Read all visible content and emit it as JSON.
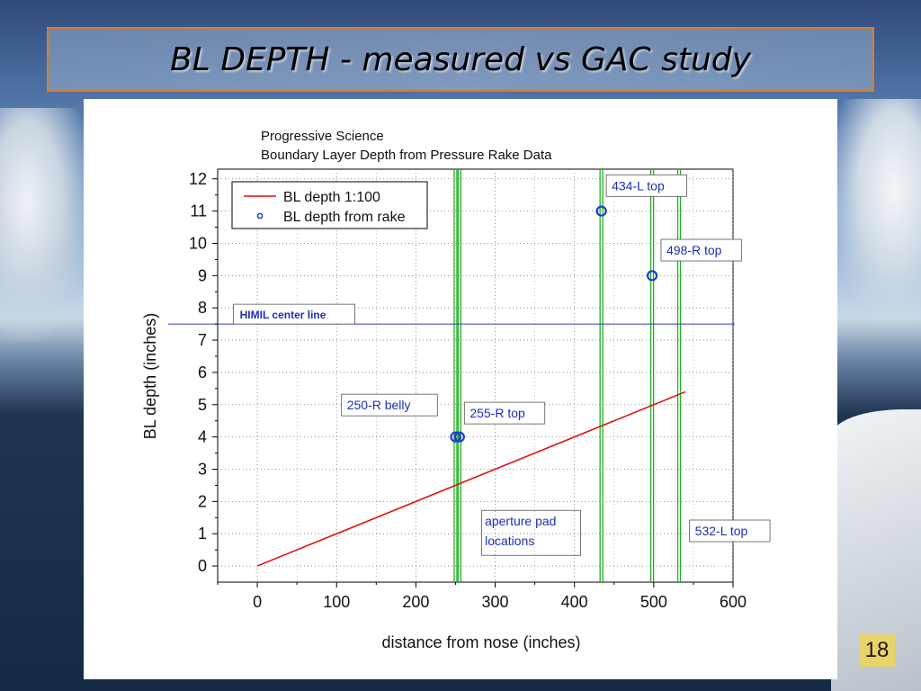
{
  "slide": {
    "title": "BL DEPTH - measured vs GAC study",
    "page_number": "18"
  },
  "chart_data": {
    "type": "line",
    "title": "Progressive Science",
    "subtitle": "Boundary Layer Depth from Pressure Rake Data",
    "xlabel": "distance from nose (inches)",
    "ylabel": "BL depth (inches)",
    "xlim": [
      -50,
      600
    ],
    "ylim": [
      -0.5,
      12.3
    ],
    "xticks": [
      0,
      100,
      200,
      300,
      400,
      500,
      600
    ],
    "yticks": [
      0,
      1,
      2,
      3,
      4,
      5,
      6,
      7,
      8,
      9,
      10,
      11,
      12
    ],
    "grid": true,
    "legend_position": "top-left",
    "series": [
      {
        "name": "BL depth 1:100",
        "kind": "line",
        "color": "#e01010",
        "points": [
          [
            0,
            0
          ],
          [
            540,
            5.4
          ]
        ]
      },
      {
        "name": "BL depth from rake",
        "kind": "scatter",
        "color": "#1a3fd0",
        "points": [
          [
            250,
            4
          ],
          [
            255,
            4
          ],
          [
            434,
            11
          ],
          [
            498,
            9
          ]
        ]
      }
    ],
    "hlines": [
      {
        "y": 7.5,
        "color": "#2a3dbb",
        "label": "HIMIL center line"
      }
    ],
    "vlines": [
      {
        "x": 250,
        "color": "#22b022"
      },
      {
        "x": 255,
        "color": "#22b022"
      },
      {
        "x": 434,
        "color": "#22b022"
      },
      {
        "x": 498,
        "color": "#22b022"
      },
      {
        "x": 532,
        "color": "#22b022"
      }
    ],
    "annotations": [
      {
        "text": "434-L top",
        "x": 447,
        "y": 11.65
      },
      {
        "text": "498-R top",
        "x": 516,
        "y": 9.65
      },
      {
        "text": "250-R belly",
        "x": 113,
        "y": 4.85
      },
      {
        "text": "255-R top",
        "x": 268,
        "y": 4.6
      },
      {
        "text": "aperture pad",
        "x": 287,
        "y": 1.25
      },
      {
        "text": "locations",
        "x": 287,
        "y": 0.65
      },
      {
        "text": "532-L top",
        "x": 552,
        "y": 0.95
      }
    ]
  }
}
